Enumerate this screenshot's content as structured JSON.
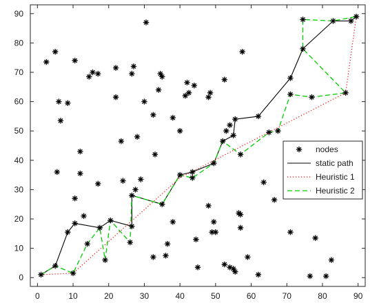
{
  "chart_data": {
    "type": "scatter",
    "title": "",
    "xlabel": "",
    "ylabel": "",
    "xlim": [
      -2,
      92
    ],
    "ylim": [
      -3,
      93
    ],
    "x_ticks": [
      0,
      10,
      20,
      30,
      40,
      50,
      60,
      70,
      80,
      90
    ],
    "y_ticks": [
      0,
      10,
      20,
      30,
      40,
      50,
      60,
      70,
      80,
      90
    ],
    "grid": false,
    "legend_position": "center-right",
    "legend": [
      {
        "label": "nodes",
        "style": "asterisk",
        "color": "#000000"
      },
      {
        "label": "static path",
        "style": "solid",
        "color": "#000000"
      },
      {
        "label": "Heuristic 1",
        "style": "dotted",
        "color": "#ff0000"
      },
      {
        "label": "Heuristic 2",
        "style": "dashed",
        "color": "#00cc00"
      }
    ],
    "series": [
      {
        "name": "nodes",
        "type": "scatter",
        "points": [
          [
            1,
            1
          ],
          [
            5,
            4
          ],
          [
            10,
            1.5
          ],
          [
            8.5,
            15.5
          ],
          [
            10.5,
            18.5
          ],
          [
            13,
            21
          ],
          [
            14,
            11.5
          ],
          [
            17.5,
            17
          ],
          [
            19,
            6
          ],
          [
            20.5,
            19.5
          ],
          [
            26,
            12
          ],
          [
            26.5,
            17.5
          ],
          [
            26.5,
            28
          ],
          [
            27.5,
            30
          ],
          [
            29,
            33.5
          ],
          [
            35,
            25
          ],
          [
            40,
            35
          ],
          [
            43.5,
            34
          ],
          [
            43.5,
            36
          ],
          [
            49.5,
            39
          ],
          [
            52,
            46.5
          ],
          [
            55,
            48.5
          ],
          [
            55.5,
            54
          ],
          [
            57,
            42
          ],
          [
            62,
            55
          ],
          [
            65,
            49.5
          ],
          [
            67.5,
            50
          ],
          [
            71,
            68
          ],
          [
            71,
            62.5
          ],
          [
            74.5,
            78
          ],
          [
            74.5,
            88
          ],
          [
            77,
            61.5
          ],
          [
            83,
            87.5
          ],
          [
            86.5,
            63
          ],
          [
            88,
            87.5
          ],
          [
            89.5,
            89
          ],
          [
            2.5,
            73.5
          ],
          [
            5,
            77
          ],
          [
            6,
            60
          ],
          [
            6.5,
            53.5
          ],
          [
            8.5,
            59.5
          ],
          [
            10.5,
            74
          ],
          [
            14.5,
            68.5
          ],
          [
            15.5,
            70
          ],
          [
            17,
            69.5
          ],
          [
            22,
            71.5
          ],
          [
            22,
            61.5
          ],
          [
            26.5,
            69.5
          ],
          [
            27,
            72
          ],
          [
            28,
            48
          ],
          [
            30,
            60
          ],
          [
            30.5,
            87
          ],
          [
            32.5,
            55.5
          ],
          [
            34,
            64
          ],
          [
            34.5,
            69.5
          ],
          [
            35,
            68.5
          ],
          [
            38,
            54.5
          ],
          [
            40,
            50
          ],
          [
            41.5,
            62
          ],
          [
            42,
            66.5
          ],
          [
            42.5,
            63
          ],
          [
            44,
            65.5
          ],
          [
            48,
            61.5
          ],
          [
            48.5,
            63
          ],
          [
            52.5,
            67.5
          ],
          [
            53,
            50
          ],
          [
            54,
            52
          ],
          [
            57.5,
            77
          ],
          [
            5.5,
            36
          ],
          [
            10.5,
            27
          ],
          [
            12,
            43
          ],
          [
            12,
            35.5
          ],
          [
            17,
            32
          ],
          [
            23.5,
            46.5
          ],
          [
            24,
            33
          ],
          [
            33,
            42
          ],
          [
            36,
            7.5
          ],
          [
            36.5,
            11.5
          ],
          [
            32.5,
            7
          ],
          [
            38,
            19
          ],
          [
            44.5,
            13
          ],
          [
            45,
            3.5
          ],
          [
            48,
            24.5
          ],
          [
            49,
            15.5
          ],
          [
            49.5,
            19
          ],
          [
            50,
            15.5
          ],
          [
            52.5,
            4.5
          ],
          [
            54,
            3.5
          ],
          [
            55,
            3
          ],
          [
            55.5,
            2
          ],
          [
            56.5,
            22
          ],
          [
            57,
            21.5
          ],
          [
            57,
            17
          ],
          [
            59,
            7
          ],
          [
            62,
            1
          ],
          [
            63.5,
            32.5
          ],
          [
            66.5,
            26.5
          ],
          [
            71,
            15.5
          ],
          [
            76.5,
            0.5
          ],
          [
            78,
            13.5
          ],
          [
            81,
            0.5
          ],
          [
            82.5,
            6
          ]
        ]
      },
      {
        "name": "static path",
        "type": "line",
        "points": [
          [
            1,
            1
          ],
          [
            5,
            4
          ],
          [
            8.5,
            15.5
          ],
          [
            10.5,
            18.5
          ],
          [
            17.5,
            17
          ],
          [
            20.5,
            19.5
          ],
          [
            26.5,
            17.5
          ],
          [
            26.5,
            28
          ],
          [
            35,
            25
          ],
          [
            40,
            35
          ],
          [
            43.5,
            36
          ],
          [
            49.5,
            39
          ],
          [
            52,
            46.5
          ],
          [
            55,
            48.5
          ],
          [
            55.5,
            54
          ],
          [
            62,
            55
          ],
          [
            71,
            68
          ],
          [
            74.5,
            78
          ],
          [
            83,
            87.5
          ],
          [
            88,
            87.5
          ],
          [
            89.5,
            89
          ]
        ]
      },
      {
        "name": "Heuristic 1",
        "type": "line",
        "points": [
          [
            1,
            1
          ],
          [
            10,
            1.5
          ],
          [
            40,
            34
          ],
          [
            86.5,
            63
          ],
          [
            89.5,
            89
          ]
        ]
      },
      {
        "name": "Heuristic 2",
        "type": "line",
        "points": [
          [
            1,
            1
          ],
          [
            5,
            4
          ],
          [
            10,
            1.5
          ],
          [
            14,
            11.5
          ],
          [
            17.5,
            17
          ],
          [
            19,
            6
          ],
          [
            20.5,
            19.5
          ],
          [
            26,
            12
          ],
          [
            26.5,
            28
          ],
          [
            35,
            25
          ],
          [
            40,
            35
          ],
          [
            43.5,
            34
          ],
          [
            49.5,
            39
          ],
          [
            52,
            46.5
          ],
          [
            57,
            42
          ],
          [
            65,
            49.5
          ],
          [
            67.5,
            50
          ],
          [
            71,
            62.5
          ],
          [
            77,
            61.5
          ],
          [
            86.5,
            63
          ],
          [
            74.5,
            78
          ],
          [
            74.5,
            88
          ],
          [
            83,
            87.5
          ],
          [
            89.5,
            89
          ]
        ]
      }
    ]
  }
}
